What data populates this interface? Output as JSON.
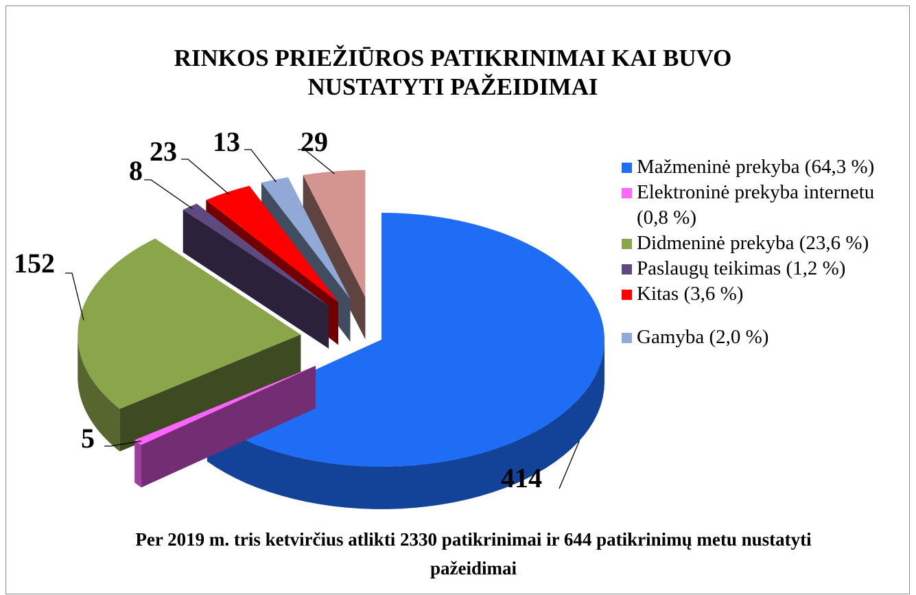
{
  "chart_data": {
    "type": "pie",
    "title": "RINKOS PRIEŽIŪROS PATIKRINIMAI KAI BUVO NUSTATYTI PAŽEIDIMAI",
    "caption": "Per 2019 m. tris ketvirčius atlikti 2330 patikrinimai ir 644 patikrinimų metu nustatyti pažeidimai",
    "categories": [
      "Mažmeninė prekyba (64,3 %)",
      "Elektroninė prekyba internetu (0,8 %)",
      "Didmeninė prekyba (23,6 %)",
      "Paslaugų teikimas (1,2 %)",
      "Kitas (3,6 %)",
      "Gamyba (2,0 %)",
      null
    ],
    "values": [
      414,
      5,
      152,
      8,
      23,
      13,
      29
    ],
    "colors": [
      "#1f6cf5",
      "#ff66ff",
      "#8aa54a",
      "#5f4a80",
      "#ff0000",
      "#91a9d6",
      "#d49591"
    ]
  }
}
